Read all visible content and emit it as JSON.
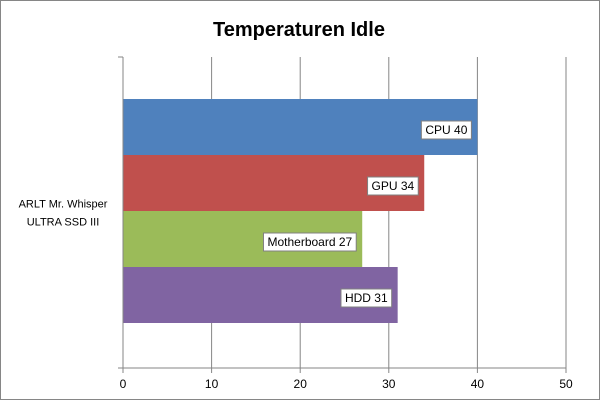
{
  "chart_data": {
    "type": "bar",
    "orientation": "horizontal",
    "title": "Temperaturen Idle",
    "categories": [
      "ARLT Mr. Whisper ULTRA SSD III"
    ],
    "category_label_lines": [
      "ARLT Mr. Whisper",
      "ULTRA SSD III"
    ],
    "series": [
      {
        "name": "CPU",
        "values": [
          40
        ],
        "color": "#4F81BD",
        "label": "CPU 40"
      },
      {
        "name": "GPU",
        "values": [
          34
        ],
        "color": "#C0504D",
        "label": "GPU 34"
      },
      {
        "name": "Motherboard",
        "values": [
          27
        ],
        "color": "#9BBB59",
        "label": "Motherboard 27"
      },
      {
        "name": "HDD",
        "values": [
          31
        ],
        "color": "#8064A2",
        "label": "HDD 31"
      }
    ],
    "xlim": [
      0,
      50
    ],
    "x_ticks": [
      0,
      10,
      20,
      30,
      40,
      50
    ],
    "grid": true,
    "legend": "none",
    "xlabel": "",
    "ylabel": ""
  }
}
